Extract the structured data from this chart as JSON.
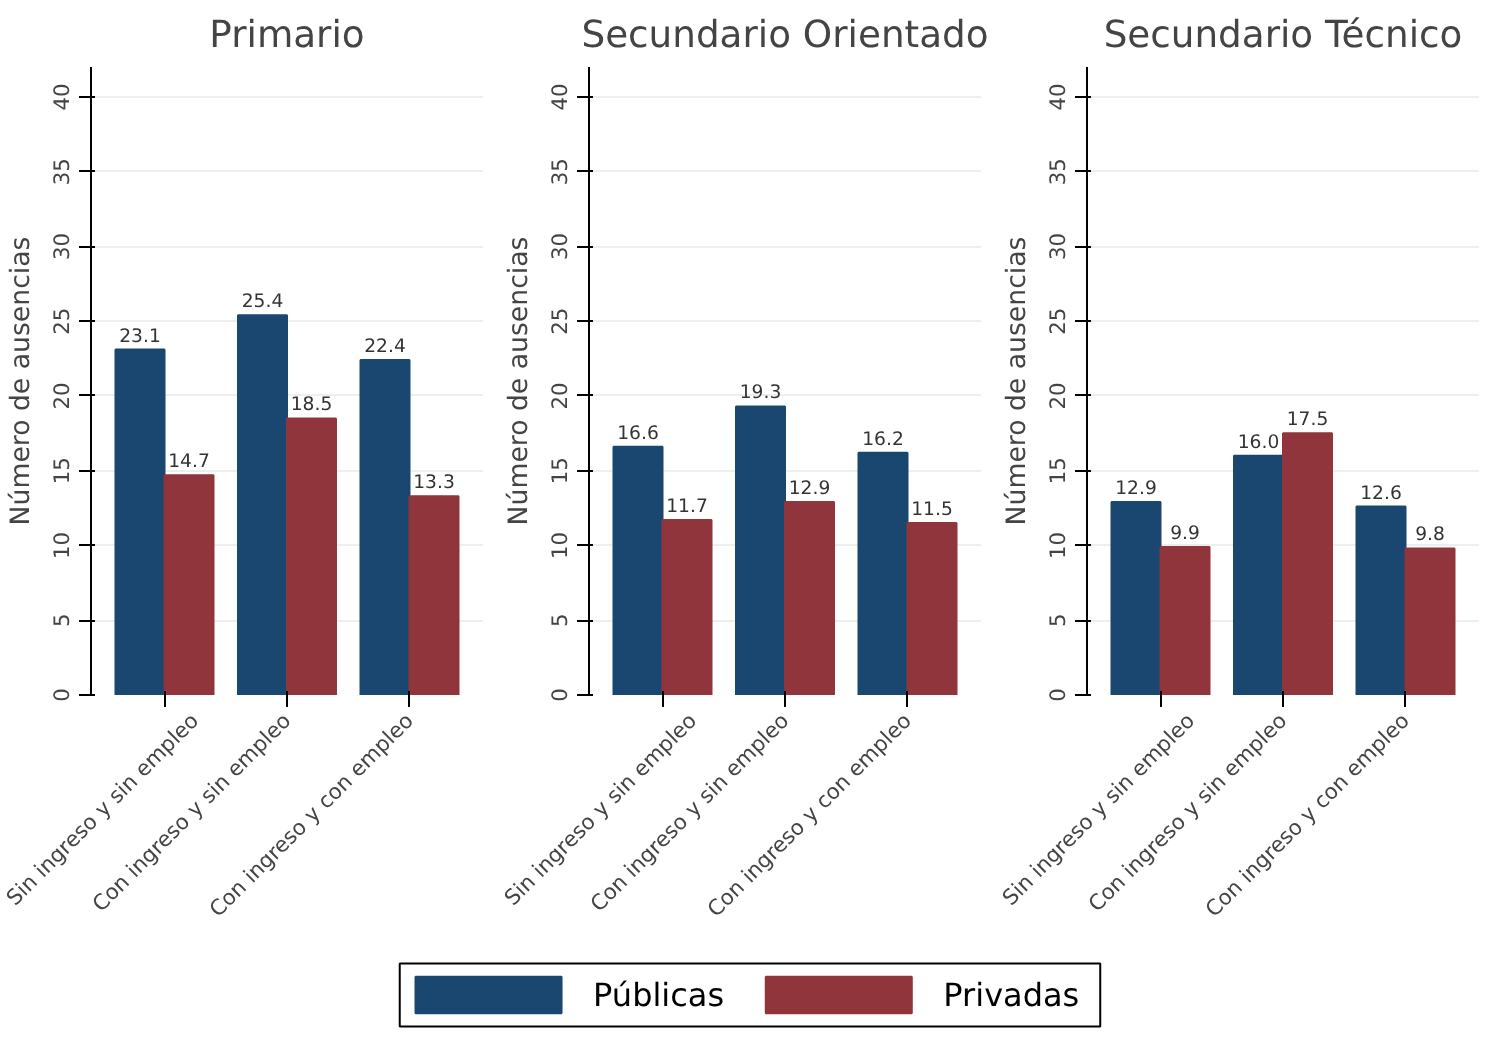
{
  "chart_data": [
    {
      "type": "bar",
      "title": "Primario",
      "ylabel": "Número de ausencias",
      "categories": [
        "Sin ingreso y sin empleo",
        "Con ingreso y sin empleo",
        "Con ingreso y con empleo"
      ],
      "series": [
        {
          "name": "Públicas",
          "color": "#1a476f",
          "values": [
            23.1,
            25.4,
            22.4
          ],
          "value_labels": [
            "23.1",
            "25.4",
            "22.4"
          ]
        },
        {
          "name": "Privadas",
          "color": "#90353b",
          "values": [
            14.7,
            18.5,
            13.3
          ],
          "value_labels": [
            "14.7",
            "18.5",
            "13.3"
          ]
        }
      ],
      "ylim": [
        0,
        42
      ],
      "yticks": [
        0,
        5,
        10,
        15,
        20,
        25,
        30,
        35,
        40
      ],
      "grid": "y",
      "legend": "bottom"
    },
    {
      "type": "bar",
      "title": "Secundario Orientado",
      "ylabel": "Número de ausencias",
      "categories": [
        "Sin ingreso y sin empleo",
        "Con ingreso y sin empleo",
        "Con ingreso y con empleo"
      ],
      "series": [
        {
          "color": "#1a476f",
          "values": [
            16.6,
            19.3,
            16.2
          ],
          "value_labels": [
            "16.6",
            "19.3",
            "16.2"
          ]
        },
        {
          "color": "#90353b",
          "values": [
            11.7,
            12.9,
            11.5
          ],
          "value_labels": [
            "11.7",
            "12.9",
            "11.5"
          ]
        }
      ],
      "ylim": [
        0,
        42
      ],
      "yticks": [
        0,
        5,
        10,
        15,
        20,
        25,
        30,
        35,
        40
      ],
      "grid": "y"
    },
    {
      "type": "bar",
      "title": "Secundario Técnico",
      "ylabel": "Número de ausencias",
      "categories": [
        "Sin ingreso y sin empleo",
        "Con ingreso y sin empleo",
        "Con ingreso y con empleo"
      ],
      "series": [
        {
          "color": "#1a476f",
          "values": [
            12.9,
            16.0,
            12.6
          ],
          "value_labels": [
            "12.9",
            "16.0",
            "12.6"
          ]
        },
        {
          "color": "#90353b",
          "values": [
            9.9,
            17.5,
            9.8
          ],
          "value_labels": [
            "9.9",
            "17.5",
            "9.8"
          ]
        }
      ],
      "ylim": [
        0,
        42
      ],
      "yticks": [
        0,
        5,
        10,
        15,
        20,
        25,
        30,
        35,
        40
      ],
      "grid": "y"
    }
  ]
}
